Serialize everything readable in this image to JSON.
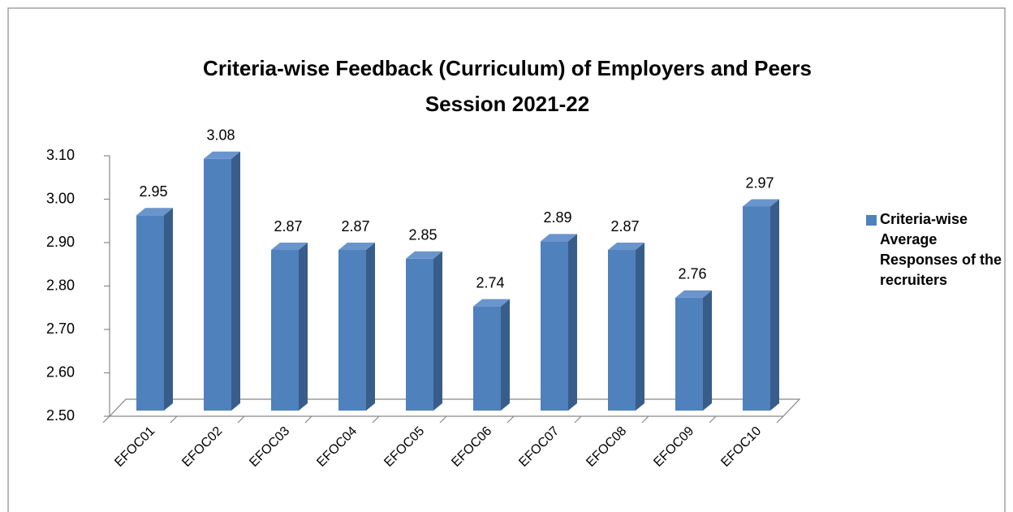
{
  "chart_data": {
    "type": "bar3d",
    "title": [
      "Criteria-wise Feedback (Curriculum) of  Employers and Peers",
      "Session 2021-22"
    ],
    "categories": [
      "EFOC01",
      "EFOC02",
      "EFOC03",
      "EFOC04",
      "EFOC05",
      "EFOC06",
      "EFOC07",
      "EFOC08",
      "EFOC09",
      "EFOC10"
    ],
    "series": [
      {
        "name": "Criteria-wise Average Responses of the recruiters",
        "color": "#4f81bd",
        "values": [
          2.95,
          3.08,
          2.87,
          2.87,
          2.85,
          2.74,
          2.89,
          2.87,
          2.76,
          2.97
        ]
      }
    ],
    "ylim": [
      2.5,
      3.1
    ],
    "yticks": [
      {
        "value": 2.5,
        "label": "2.50"
      },
      {
        "value": 2.6,
        "label": "2.60"
      },
      {
        "value": 2.7,
        "label": "2.70"
      },
      {
        "value": 2.8,
        "label": "2.80"
      },
      {
        "value": 2.9,
        "label": "2.90"
      },
      {
        "value": 3.0,
        "label": "3.00"
      },
      {
        "value": 3.1,
        "label": "3.10"
      }
    ],
    "legend": "right"
  }
}
